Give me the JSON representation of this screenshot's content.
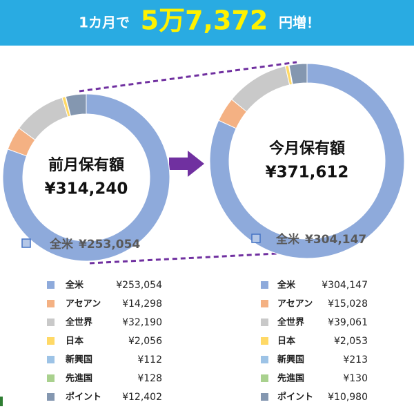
{
  "header": {
    "prefix": "1カ月で",
    "amount": "5万7,372",
    "suffix": "円増！"
  },
  "chart_data": [
    {
      "type": "pie",
      "title": "前月保有額",
      "total": {
        "value": 314240,
        "label": "¥314,240"
      },
      "categories": [
        "全米",
        "アセアン",
        "全世界",
        "日本",
        "新興国",
        "先進国",
        "ポイント"
      ],
      "values": [
        253054,
        14298,
        32190,
        2056,
        112,
        128,
        12402
      ],
      "value_labels": [
        "¥253,054",
        "¥14,298",
        "¥32,190",
        "¥2,056",
        "¥112",
        "¥128",
        "¥12,402"
      ],
      "colors": [
        "#8eaadb",
        "#f4b183",
        "#c9c9c9",
        "#ffd966",
        "#9dc3e6",
        "#a9d18e",
        "#8497b0"
      ]
    },
    {
      "type": "pie",
      "title": "今月保有額",
      "total": {
        "value": 371612,
        "label": "¥371,612"
      },
      "categories": [
        "全米",
        "アセアン",
        "全世界",
        "日本",
        "新興国",
        "先進国",
        "ポイント"
      ],
      "values": [
        304147,
        15028,
        39061,
        2053,
        213,
        130,
        10980
      ],
      "value_labels": [
        "¥304,147",
        "¥15,028",
        "¥39,061",
        "¥2,053",
        "¥213",
        "¥130",
        "¥10,980"
      ],
      "colors": [
        "#8eaadb",
        "#f4b183",
        "#c9c9c9",
        "#ffd966",
        "#9dc3e6",
        "#a9d18e",
        "#8497b0"
      ]
    }
  ]
}
